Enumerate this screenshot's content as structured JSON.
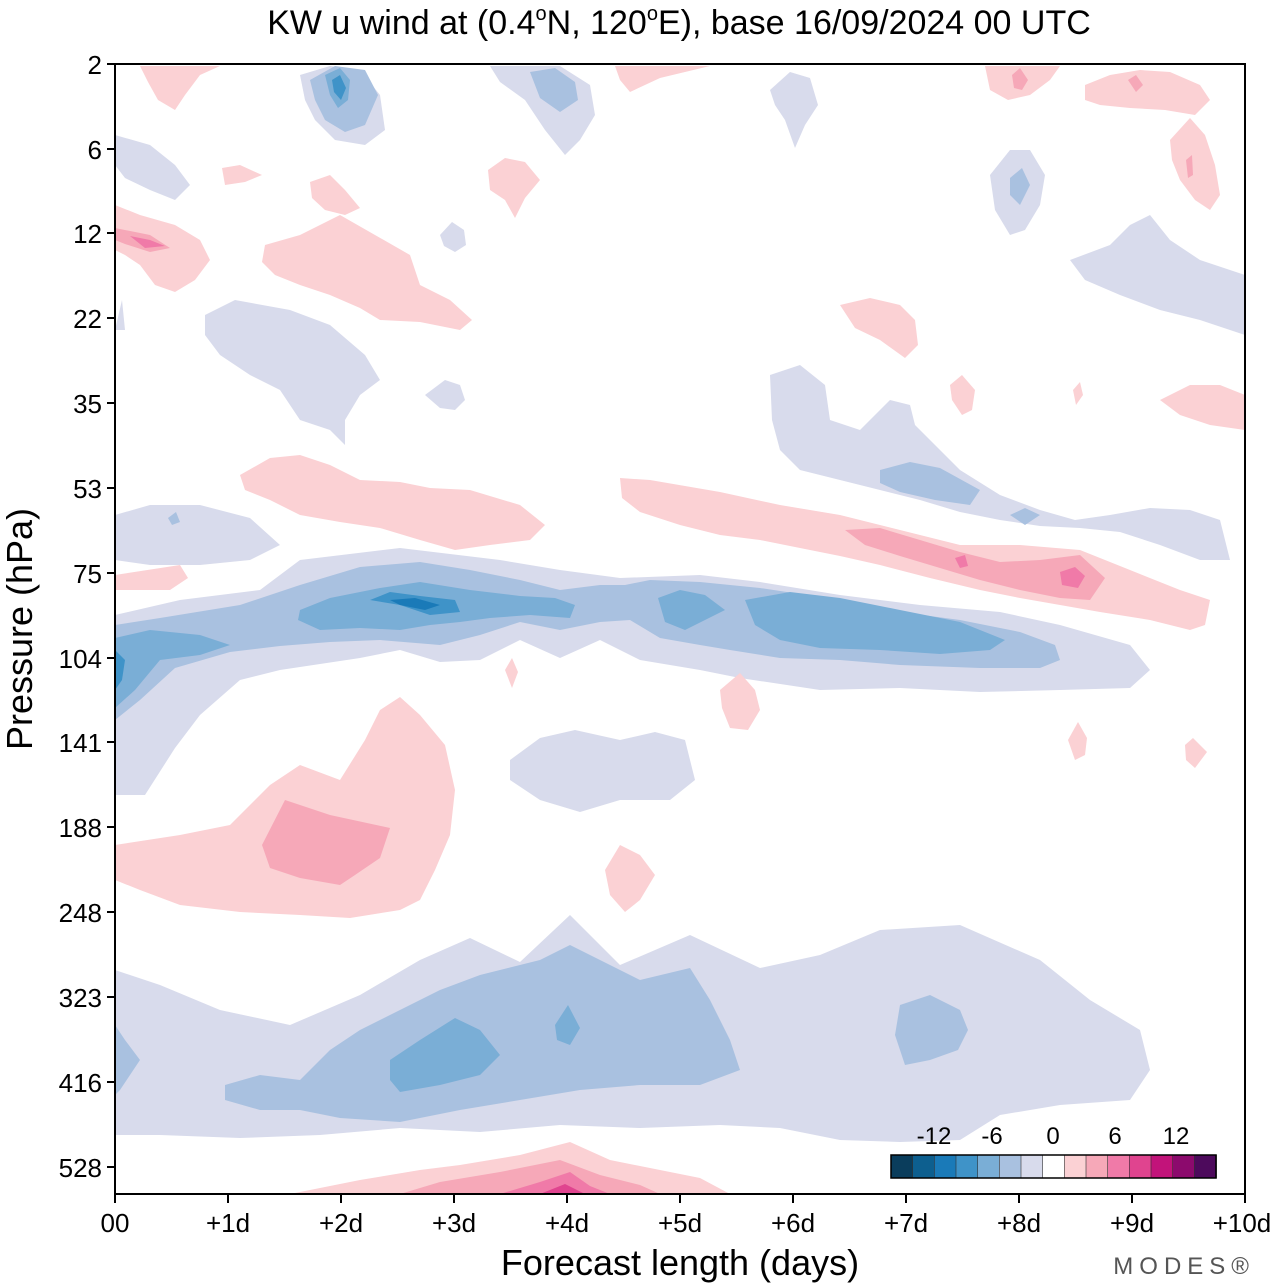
{
  "chart_data": {
    "type": "heatmap",
    "title": "KW u wind at (0.4°N, 120°E),  base 16/09/2024  00 UTC",
    "title_parts": {
      "pre": "KW u wind at (0.4",
      "deg": "o",
      "mid": "N, 120",
      "post": "E),  base 16/09/2024  00 UTC"
    },
    "xlabel": "Forecast length (days)",
    "ylabel": "Pressure (hPa)",
    "x_ticks": [
      "00",
      "+1d",
      "+2d",
      "+3d",
      "+4d",
      "+5d",
      "+6d",
      "+7d",
      "+8d",
      "+9d",
      "+10d"
    ],
    "y_ticks": [
      "2",
      "6",
      "12",
      "22",
      "35",
      "53",
      "75",
      "104",
      "141",
      "188",
      "248",
      "323",
      "416",
      "528"
    ],
    "xlim": [
      0,
      10
    ],
    "y_scale": "log-pressure (ticks equally spaced)",
    "colorbar": {
      "labels": [
        "-12",
        "-6",
        "0",
        "6",
        "12"
      ],
      "colors": [
        "#0a3d5c",
        "#0d5f8f",
        "#1a7ab8",
        "#3f93c8",
        "#7aaed6",
        "#a9c1e0",
        "#d8dbec",
        "#ffffff",
        "#fbd1d4",
        "#f6a8b8",
        "#f07aa8",
        "#e0448f",
        "#c2137a",
        "#8c0a6d",
        "#4d0a5c"
      ]
    },
    "regions": [
      {
        "sign": "negative",
        "level": 1,
        "x": [
          1.9,
          2.3
        ],
        "y": [
          "2",
          "6"
        ],
        "note": "core -6 near day 2, top"
      },
      {
        "sign": "negative",
        "level": 2,
        "x": [
          1.6,
          5.5
        ],
        "y": [
          "75",
          "104"
        ],
        "note": "easterly band, core about -9 near days 2.5-3.5"
      },
      {
        "sign": "negative",
        "level": 2,
        "x": [
          5.5,
          8.0
        ],
        "y": [
          "75",
          "104"
        ]
      },
      {
        "sign": "negative",
        "level": 1,
        "x": [
          2.4,
          6.0
        ],
        "y": [
          "323",
          "416"
        ]
      },
      {
        "sign": "positive",
        "level": 2,
        "x": [
          1.3,
          2.4
        ],
        "y": [
          "141",
          "248"
        ]
      },
      {
        "sign": "positive",
        "level": 2,
        "x": [
          6.5,
          8.5
        ],
        "y": [
          "53",
          "75"
        ],
        "note": "westerly band, core about +6 near day 8.5"
      },
      {
        "sign": "positive",
        "level": 2,
        "x": [
          3.5,
          4.5
        ],
        "y": [
          "528",
          "600"
        ]
      }
    ]
  },
  "branding": {
    "logo": "MODES®"
  }
}
